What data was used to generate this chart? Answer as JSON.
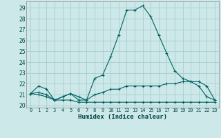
{
  "title": "",
  "xlabel": "Humidex (Indice chaleur)",
  "bg_color": "#cce8e8",
  "grid_color": "#aacccc",
  "line_color": "#006060",
  "xlim": [
    -0.5,
    23.5
  ],
  "ylim": [
    19.8,
    29.6
  ],
  "yticks": [
    20,
    21,
    22,
    23,
    24,
    25,
    26,
    27,
    28,
    29
  ],
  "xticks": [
    0,
    1,
    2,
    3,
    4,
    5,
    6,
    7,
    8,
    9,
    10,
    11,
    12,
    13,
    14,
    15,
    16,
    17,
    18,
    19,
    20,
    21,
    22,
    23
  ],
  "series": [
    [
      21.1,
      21.8,
      21.5,
      20.5,
      20.8,
      21.1,
      20.8,
      20.5,
      22.5,
      22.8,
      24.5,
      26.5,
      28.8,
      28.8,
      29.2,
      28.2,
      26.5,
      24.8,
      23.2,
      22.5,
      22.2,
      21.8,
      20.8,
      20.5
    ],
    [
      21.1,
      21.2,
      21.0,
      20.5,
      20.8,
      21.1,
      20.5,
      20.5,
      21.0,
      21.2,
      21.5,
      21.5,
      21.8,
      21.8,
      21.8,
      21.8,
      21.8,
      22.0,
      22.0,
      22.2,
      22.2,
      22.2,
      21.8,
      20.5
    ],
    [
      21.1,
      21.0,
      20.8,
      20.5,
      20.5,
      20.5,
      20.3,
      20.3,
      20.3,
      20.3,
      20.3,
      20.3,
      20.3,
      20.3,
      20.3,
      20.3,
      20.3,
      20.3,
      20.3,
      20.3,
      20.3,
      20.3,
      20.3,
      20.3
    ]
  ]
}
